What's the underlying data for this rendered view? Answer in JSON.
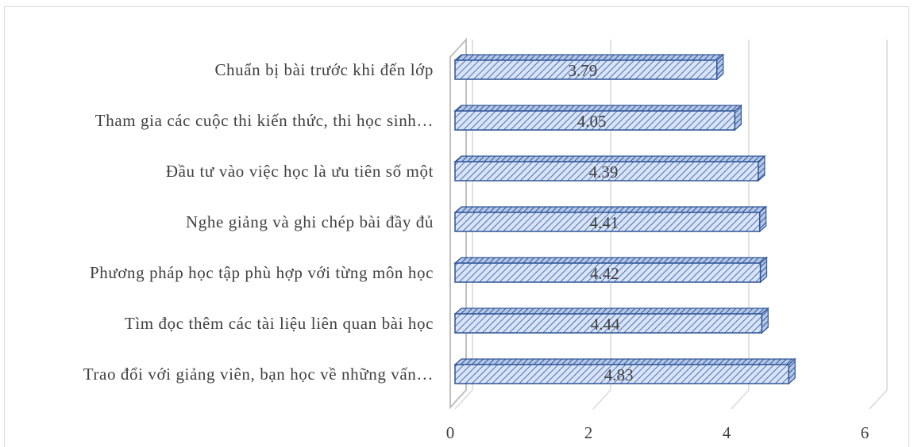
{
  "chart_data": {
    "type": "bar",
    "orientation": "horizontal",
    "style": "3d-clustered-bar",
    "categories": [
      "Trao đổi với giảng viên, bạn học về những vấn…",
      "Tìm đọc thêm các tài liệu liên quan bài học",
      "Phương pháp học tập phù hợp với từng môn học",
      "Nghe giảng và ghi chép bài đầy đủ",
      "Đầu tư vào việc học là ưu tiên số một",
      "Tham gia các cuộc thi kiến thức, thi học sinh…",
      "Chuẩn bị bài trước khi đến lớp"
    ],
    "values": [
      4.83,
      4.44,
      4.42,
      4.41,
      4.39,
      4.05,
      3.79
    ],
    "value_labels": [
      "4.83",
      "4.44",
      "4.42",
      "4.41",
      "4.39",
      "4.05",
      "3.79"
    ],
    "xlim": [
      0,
      6
    ],
    "xticks": [
      0,
      2,
      4,
      6
    ],
    "xtick_labels": [
      "0",
      "2",
      "4",
      "6"
    ],
    "grid": true,
    "legend": "none",
    "title": "",
    "xlabel": "",
    "ylabel": "",
    "colors": {
      "bar_fill": "#dae3f3",
      "bar_hatch": "#4472c4",
      "bar_edge": "#2f5597",
      "gridline": "#d9d9d9",
      "text": "#404040"
    }
  }
}
